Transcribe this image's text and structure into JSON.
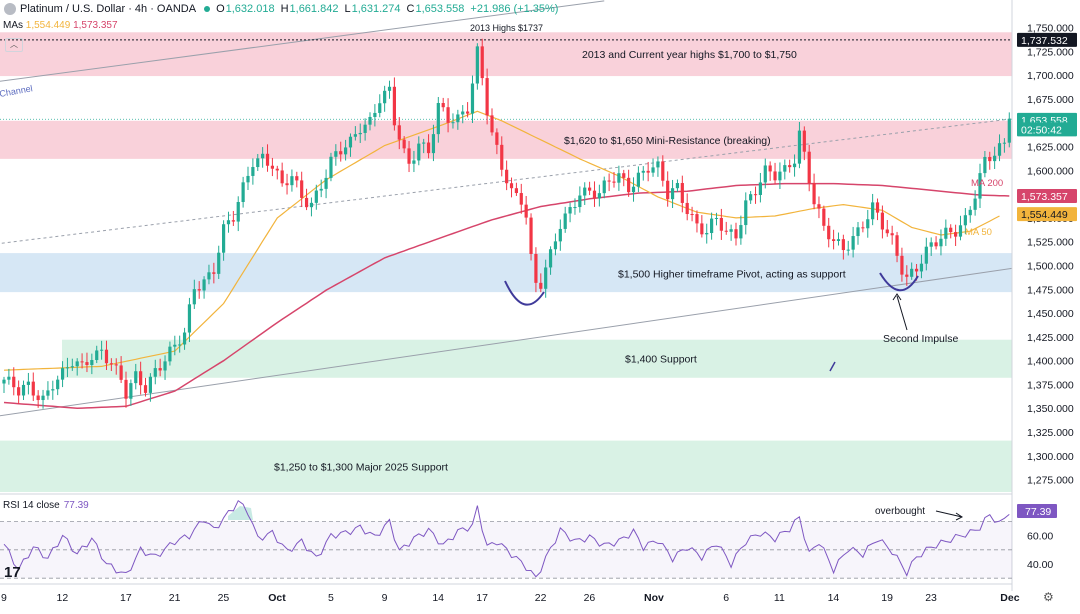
{
  "header": {
    "symbol": "Platinum / U.S. Dollar · 4h · OANDA",
    "open_label": "O",
    "open": "1,632.018",
    "high_label": "H",
    "high": "1,661.842",
    "low_label": "L",
    "low": "1,631.274",
    "close_label": "C",
    "close": "1,653.558",
    "change": "+21.986 (+1.35%)",
    "mas_label": "MAs",
    "ma50_value": "1,554.449",
    "ma200_value": "1,573.357"
  },
  "rsi_header": {
    "label": "RSI 14 close",
    "value": "77.39"
  },
  "colors": {
    "up": "#22ab94",
    "down": "#f23645",
    "ma50": "#f2b43c",
    "ma200": "#d6456b",
    "rsi": "#7e57c2",
    "resistance_zone": "#f8c9d4",
    "pivot_zone": "#cfe3f3",
    "support_zone": "#d2f0e0"
  },
  "chart_data": [
    {
      "type": "candlestick",
      "title": "Platinum / U.S. Dollar · 4h · OANDA",
      "ylim": [
        1262,
        1760
      ],
      "y_ticks": [
        1275,
        1300,
        1325,
        1350,
        1375,
        1400,
        1425,
        1450,
        1475,
        1500,
        1525,
        1550,
        1575,
        1600,
        1625,
        1650,
        1675,
        1700,
        1725,
        1750
      ],
      "y_tick_labels": [
        "1,275.000",
        "1,300.000",
        "1,325.000",
        "1,350.000",
        "1,375.000",
        "1,400.000",
        "1,425.000",
        "1,450.000",
        "1,475.000",
        "1,500.000",
        "1,525.000",
        "1,550.000",
        "1,575.000",
        "1,600.000",
        "1,625.000",
        "1,650.000",
        "1,675.000",
        "1,700.000",
        "1,725.000",
        "1,750.000"
      ],
      "x_ticks": [
        {
          "label": "9",
          "bar": 0
        },
        {
          "label": "12",
          "bar": 12
        },
        {
          "label": "17",
          "bar": 25
        },
        {
          "label": "21",
          "bar": 35
        },
        {
          "label": "25",
          "bar": 45
        },
        {
          "label": "Oct",
          "bar": 56
        },
        {
          "label": "5",
          "bar": 67
        },
        {
          "label": "9",
          "bar": 78
        },
        {
          "label": "14",
          "bar": 89
        },
        {
          "label": "17",
          "bar": 98
        },
        {
          "label": "22",
          "bar": 110
        },
        {
          "label": "26",
          "bar": 120
        },
        {
          "label": "Nov",
          "bar": 133
        },
        {
          "label": "6",
          "bar": 148
        },
        {
          "label": "11",
          "bar": 159
        },
        {
          "label": "14",
          "bar": 170
        },
        {
          "label": "19",
          "bar": 181
        },
        {
          "label": "23",
          "bar": 190
        },
        {
          "label": "Dec",
          "bar": 206
        }
      ],
      "ohlc_anchors": [
        [
          0,
          1380
        ],
        [
          3,
          1365
        ],
        [
          5,
          1372
        ],
        [
          8,
          1362
        ],
        [
          10,
          1378
        ],
        [
          12,
          1384
        ],
        [
          14,
          1396
        ],
        [
          16,
          1392
        ],
        [
          18,
          1408
        ],
        [
          20,
          1412
        ],
        [
          22,
          1398
        ],
        [
          24,
          1376
        ],
        [
          25,
          1362
        ],
        [
          27,
          1382
        ],
        [
          29,
          1374
        ],
        [
          31,
          1392
        ],
        [
          33,
          1402
        ],
        [
          35,
          1412
        ],
        [
          37,
          1426
        ],
        [
          39,
          1478
        ],
        [
          41,
          1486
        ],
        [
          43,
          1498
        ],
        [
          45,
          1536
        ],
        [
          47,
          1548
        ],
        [
          49,
          1580
        ],
        [
          51,
          1612
        ],
        [
          53,
          1616
        ],
        [
          55,
          1606
        ],
        [
          57,
          1580
        ],
        [
          59,
          1592
        ],
        [
          61,
          1572
        ],
        [
          63,
          1568
        ],
        [
          65,
          1586
        ],
        [
          67,
          1608
        ],
        [
          69,
          1618
        ],
        [
          71,
          1628
        ],
        [
          73,
          1648
        ],
        [
          75,
          1654
        ],
        [
          77,
          1676
        ],
        [
          79,
          1680
        ],
        [
          80,
          1648
        ],
        [
          82,
          1616
        ],
        [
          83,
          1606
        ],
        [
          85,
          1632
        ],
        [
          87,
          1622
        ],
        [
          89,
          1666
        ],
        [
          91,
          1650
        ],
        [
          93,
          1652
        ],
        [
          95,
          1668
        ],
        [
          96,
          1696
        ],
        [
          97,
          1728
        ],
        [
          98,
          1700
        ],
        [
          99,
          1664
        ],
        [
          100,
          1636
        ],
        [
          102,
          1600
        ],
        [
          104,
          1575
        ],
        [
          106,
          1572
        ],
        [
          107,
          1556
        ],
        [
          108,
          1510
        ],
        [
          109,
          1484
        ],
        [
          110,
          1482
        ],
        [
          112,
          1508
        ],
        [
          114,
          1540
        ],
        [
          116,
          1558
        ],
        [
          118,
          1580
        ],
        [
          120,
          1580
        ],
        [
          122,
          1574
        ],
        [
          124,
          1586
        ],
        [
          126,
          1592
        ],
        [
          128,
          1584
        ],
        [
          130,
          1596
        ],
        [
          132,
          1604
        ],
        [
          134,
          1600
        ],
        [
          136,
          1572
        ],
        [
          138,
          1582
        ],
        [
          140,
          1562
        ],
        [
          142,
          1544
        ],
        [
          144,
          1534
        ],
        [
          146,
          1546
        ],
        [
          148,
          1532
        ],
        [
          150,
          1534
        ],
        [
          152,
          1568
        ],
        [
          154,
          1580
        ],
        [
          156,
          1596
        ],
        [
          158,
          1592
        ],
        [
          160,
          1600
        ],
        [
          162,
          1616
        ],
        [
          163,
          1642
        ],
        [
          164,
          1618
        ],
        [
          166,
          1566
        ],
        [
          168,
          1536
        ],
        [
          170,
          1524
        ],
        [
          172,
          1520
        ],
        [
          174,
          1532
        ],
        [
          176,
          1544
        ],
        [
          178,
          1558
        ],
        [
          180,
          1540
        ],
        [
          182,
          1526
        ],
        [
          184,
          1500
        ],
        [
          185,
          1490
        ],
        [
          187,
          1498
        ],
        [
          189,
          1512
        ],
        [
          191,
          1522
        ],
        [
          193,
          1534
        ],
        [
          195,
          1540
        ],
        [
          197,
          1550
        ],
        [
          199,
          1574
        ],
        [
          201,
          1606
        ],
        [
          203,
          1616
        ],
        [
          205,
          1630
        ],
        [
          206,
          1654
        ]
      ],
      "candle_bar_count": 207,
      "last_bar_index": 206,
      "ma50": [
        [
          0,
          1390
        ],
        [
          20,
          1394
        ],
        [
          35,
          1410
        ],
        [
          45,
          1460
        ],
        [
          56,
          1550
        ],
        [
          66,
          1590
        ],
        [
          78,
          1626
        ],
        [
          90,
          1648
        ],
        [
          97,
          1662
        ],
        [
          102,
          1652
        ],
        [
          110,
          1632
        ],
        [
          118,
          1612
        ],
        [
          126,
          1594
        ],
        [
          134,
          1572
        ],
        [
          142,
          1556
        ],
        [
          150,
          1550
        ],
        [
          158,
          1552
        ],
        [
          166,
          1560
        ],
        [
          172,
          1564
        ],
        [
          180,
          1558
        ],
        [
          186,
          1540
        ],
        [
          192,
          1532
        ],
        [
          198,
          1536
        ],
        [
          204,
          1552
        ]
      ],
      "ma200": [
        [
          0,
          1356
        ],
        [
          15,
          1350
        ],
        [
          25,
          1352
        ],
        [
          35,
          1368
        ],
        [
          45,
          1400
        ],
        [
          56,
          1440
        ],
        [
          66,
          1474
        ],
        [
          78,
          1508
        ],
        [
          90,
          1530
        ],
        [
          100,
          1548
        ],
        [
          110,
          1562
        ],
        [
          120,
          1570
        ],
        [
          130,
          1576
        ],
        [
          140,
          1578
        ],
        [
          150,
          1584
        ],
        [
          160,
          1586
        ],
        [
          170,
          1586
        ],
        [
          180,
          1584
        ],
        [
          190,
          1579
        ],
        [
          200,
          1574
        ],
        [
          206,
          1573
        ]
      ],
      "channel_lines": [
        {
          "points": [
            [
              -9,
              1688
            ],
            [
              123,
              1778
            ]
          ]
        },
        {
          "points": [
            [
              -9,
              1336
            ],
            [
              208,
              1498
            ]
          ]
        },
        {
          "points": [
            [
              -9,
              1518
            ],
            [
              208,
              1655
            ]
          ],
          "dashed": true
        }
      ],
      "zones": [
        {
          "label": "2013 and Current year highs $1,700 to $1,750",
          "from": 1699,
          "to": 1745
        },
        {
          "label": "$1,620 to $1,650 Mini-Resistance (breaking)",
          "from": 1612,
          "to": 1652
        },
        {
          "label": "$1,500 Higher timeframe Pivot, acting as support",
          "from": 1472,
          "to": 1513
        },
        {
          "label": "$1,400 Support",
          "from": 1382,
          "to": 1422
        },
        {
          "label": "$1,250 to $1,300 Major 2025 Support",
          "from": 1262,
          "to": 1316
        }
      ],
      "annotations": [
        {
          "text": "2013 Highs $1737",
          "level": 1737
        },
        {
          "text": "Channel"
        },
        {
          "text": "MA 200",
          "color": "ma200"
        },
        {
          "text": "MA 50",
          "color": "ma50"
        },
        {
          "text": "Second Impulse",
          "bar": 188
        }
      ],
      "price_labels": [
        {
          "text": "1,737.532",
          "y": 1737,
          "kind": "dark"
        },
        {
          "text": "1,653.558",
          "y": 1653,
          "kind": "green"
        },
        {
          "text": "02:50:42",
          "y": 1643,
          "kind": "green"
        },
        {
          "text": "1,573.357",
          "y": 1573,
          "kind": "ma200"
        },
        {
          "text": "1,554.449",
          "y": 1554,
          "kind": "ma50"
        }
      ]
    },
    {
      "type": "line",
      "title": "RSI 14 close",
      "ylim": [
        28,
        88
      ],
      "y_ticks": [
        40,
        60
      ],
      "y_tick_labels": [
        "40.00",
        "60.00"
      ],
      "bands": [
        70,
        50,
        30
      ],
      "last_value": 77.39,
      "series": [
        {
          "values_anchors": [
            [
              0,
              54
            ],
            [
              3,
              36
            ],
            [
              6,
              52
            ],
            [
              9,
              44
            ],
            [
              12,
              60
            ],
            [
              15,
              47
            ],
            [
              18,
              58
            ],
            [
              21,
              40
            ],
            [
              25,
              32
            ],
            [
              28,
              50
            ],
            [
              31,
              45
            ],
            [
              35,
              56
            ],
            [
              38,
              60
            ],
            [
              41,
              72
            ],
            [
              43,
              64
            ],
            [
              46,
              76
            ],
            [
              48,
              84
            ],
            [
              50,
              77
            ],
            [
              52,
              58
            ],
            [
              55,
              62
            ],
            [
              58,
              49
            ],
            [
              61,
              56
            ],
            [
              64,
              44
            ],
            [
              67,
              60
            ],
            [
              70,
              62
            ],
            [
              73,
              66
            ],
            [
              76,
              59
            ],
            [
              79,
              70
            ],
            [
              81,
              49
            ],
            [
              84,
              58
            ],
            [
              87,
              64
            ],
            [
              90,
              53
            ],
            [
              93,
              63
            ],
            [
              96,
              67
            ],
            [
              97,
              80
            ],
            [
              99,
              52
            ],
            [
              101,
              56
            ],
            [
              104,
              47
            ],
            [
              107,
              38
            ],
            [
              109,
              30
            ],
            [
              111,
              44
            ],
            [
              114,
              64
            ],
            [
              117,
              56
            ],
            [
              120,
              59
            ],
            [
              123,
              53
            ],
            [
              126,
              56
            ],
            [
              129,
              63
            ],
            [
              131,
              52
            ],
            [
              134,
              57
            ],
            [
              137,
              44
            ],
            [
              140,
              52
            ],
            [
              143,
              45
            ],
            [
              146,
              55
            ],
            [
              149,
              40
            ],
            [
              152,
              56
            ],
            [
              155,
              62
            ],
            [
              158,
              58
            ],
            [
              161,
              65
            ],
            [
              163,
              73
            ],
            [
              165,
              47
            ],
            [
              167,
              56
            ],
            [
              170,
              36
            ],
            [
              173,
              51
            ],
            [
              176,
              47
            ],
            [
              179,
              58
            ],
            [
              182,
              49
            ],
            [
              185,
              34
            ],
            [
              187,
              45
            ],
            [
              190,
              52
            ],
            [
              193,
              56
            ],
            [
              196,
              60
            ],
            [
              198,
              62
            ],
            [
              200,
              66
            ],
            [
              202,
              75
            ],
            [
              204,
              68
            ],
            [
              206,
              77
            ]
          ]
        }
      ],
      "annotations": [
        {
          "text": "overbought"
        }
      ]
    }
  ]
}
